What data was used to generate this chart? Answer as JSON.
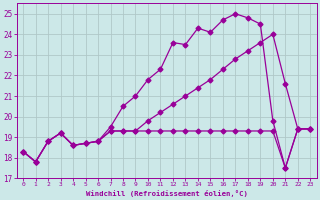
{
  "xlabel": "Windchill (Refroidissement éolien,°C)",
  "bg_color": "#cce8e8",
  "line_color": "#990099",
  "grid_color": "#b0c8c8",
  "ylim": [
    17,
    25.5
  ],
  "xlim": [
    -0.5,
    23.5
  ],
  "yticks": [
    17,
    18,
    19,
    20,
    21,
    22,
    23,
    24,
    25
  ],
  "xticks": [
    0,
    1,
    2,
    3,
    4,
    5,
    6,
    7,
    8,
    9,
    10,
    11,
    12,
    13,
    14,
    15,
    16,
    17,
    18,
    19,
    20,
    21,
    22,
    23
  ],
  "series1_x": [
    0,
    1,
    2,
    3,
    4,
    5,
    6,
    7,
    8,
    9,
    10,
    11,
    12,
    13,
    14,
    15,
    16,
    17,
    18,
    19,
    20,
    21,
    22,
    23
  ],
  "series1_y": [
    18.3,
    17.8,
    18.8,
    19.2,
    18.6,
    18.7,
    18.8,
    19.5,
    20.5,
    21.0,
    21.8,
    22.3,
    23.6,
    23.5,
    24.3,
    24.1,
    24.7,
    25.0,
    24.8,
    24.5,
    19.8,
    17.5,
    19.4,
    19.4
  ],
  "series2_x": [
    0,
    1,
    2,
    3,
    4,
    5,
    6,
    7,
    8,
    9,
    10,
    11,
    12,
    13,
    14,
    15,
    16,
    17,
    18,
    19,
    20,
    21,
    22,
    23
  ],
  "series2_y": [
    18.3,
    17.8,
    18.8,
    19.2,
    18.6,
    18.7,
    18.8,
    19.3,
    19.3,
    19.3,
    19.8,
    20.2,
    20.6,
    21.0,
    21.4,
    21.8,
    22.3,
    22.8,
    23.2,
    23.6,
    24.0,
    21.6,
    19.4,
    19.4
  ],
  "series3_x": [
    0,
    1,
    2,
    3,
    4,
    5,
    6,
    7,
    8,
    9,
    10,
    11,
    12,
    13,
    14,
    15,
    16,
    17,
    18,
    19,
    20,
    21,
    22,
    23
  ],
  "series3_y": [
    18.3,
    17.8,
    18.8,
    19.2,
    18.6,
    18.7,
    18.8,
    19.3,
    19.3,
    19.3,
    19.3,
    19.3,
    19.3,
    19.3,
    19.3,
    19.3,
    19.3,
    19.3,
    19.3,
    19.3,
    19.3,
    17.5,
    19.4,
    19.4
  ]
}
